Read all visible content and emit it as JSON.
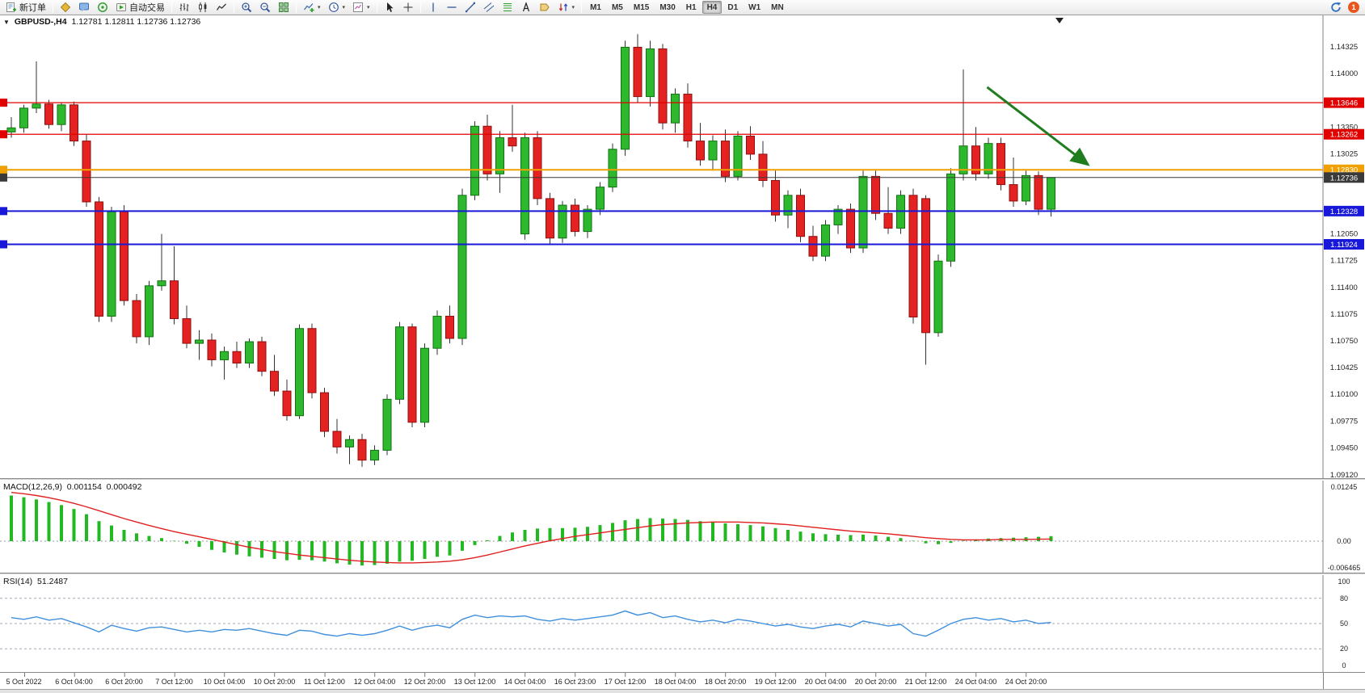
{
  "toolbar": {
    "items": [
      {
        "name": "new-order-button",
        "icon": "new-order-icon",
        "label": "新订单"
      },
      {
        "name": "separator"
      },
      {
        "name": "alerts-button",
        "icon": "megaphone-icon"
      },
      {
        "name": "community-button",
        "icon": "chat-icon"
      },
      {
        "name": "signals-button",
        "icon": "signal-icon"
      },
      {
        "name": "auto-trading-button",
        "icon": "auto-trading-icon",
        "label": "自动交易"
      },
      {
        "name": "separator"
      },
      {
        "name": "bar-chart-button",
        "icon": "bar-chart-icon"
      },
      {
        "name": "candlestick-chart-button",
        "icon": "candlestick-icon"
      },
      {
        "name": "line-chart-button",
        "icon": "line-chart-icon"
      },
      {
        "name": "separator"
      },
      {
        "name": "zoom-in-button",
        "icon": "zoom-in-icon"
      },
      {
        "name": "zoom-out-button",
        "icon": "zoom-out-icon"
      },
      {
        "name": "tile-windows-button",
        "icon": "tile-windows-icon"
      },
      {
        "name": "separator"
      },
      {
        "name": "indicators-button",
        "icon": "add-indicator-icon",
        "dropdown": true
      },
      {
        "name": "periods-button",
        "icon": "clock-icon",
        "dropdown": true
      },
      {
        "name": "templates-button",
        "icon": "template-icon",
        "dropdown": true
      },
      {
        "name": "separator"
      },
      {
        "name": "cursor-button",
        "icon": "cursor-icon"
      },
      {
        "name": "crosshair-button",
        "icon": "crosshair-icon"
      },
      {
        "name": "separator"
      },
      {
        "name": "vertical-line-button",
        "icon": "vline-icon"
      },
      {
        "name": "horizontal-line-button",
        "icon": "hline-icon"
      },
      {
        "name": "trendline-button",
        "icon": "trendline-icon"
      },
      {
        "name": "channel-button",
        "icon": "channel-icon"
      },
      {
        "name": "fibonacci-button",
        "icon": "fibonacci-icon"
      },
      {
        "name": "text-button",
        "icon": "text-icon"
      },
      {
        "name": "label-button",
        "icon": "label-icon"
      },
      {
        "name": "arrows-button",
        "icon": "arrows-icon",
        "dropdown": true
      },
      {
        "name": "separator"
      }
    ],
    "timeframes": [
      "M1",
      "M5",
      "M15",
      "M30",
      "H1",
      "H4",
      "D1",
      "W1",
      "MN"
    ],
    "active_timeframe": "H4",
    "notification_count": "1"
  },
  "chart": {
    "title": "GBPUSD-,H4",
    "ohlc": "1.12781 1.12811 1.12736 1.12736",
    "price_axis": [
      "1.14325",
      "1.14000",
      "1.13350",
      "1.13025",
      "1.12050",
      "1.11725",
      "1.11400",
      "1.11075",
      "1.10750",
      "1.10425",
      "1.10100",
      "1.09775",
      "1.09450",
      "1.09120"
    ]
  },
  "macd": {
    "label": "MACD(12,26,9)",
    "main_value": "0.001154",
    "signal_value": "0.000492",
    "axis": [
      "0.01245",
      "0.00",
      "-0.006465"
    ]
  },
  "rsi": {
    "label": "RSI(14)",
    "value": "51.2487",
    "axis": [
      "100",
      "80",
      "50",
      "20",
      "0"
    ]
  },
  "time_axis": [
    "5 Oct 2022",
    "6 Oct 04:00",
    "6 Oct 20:00",
    "7 Oct 12:00",
    "10 Oct 04:00",
    "10 Oct 20:00",
    "11 Oct 12:00",
    "12 Oct 04:00",
    "12 Oct 20:00",
    "13 Oct 12:00",
    "14 Oct 04:00",
    "16 Oct 23:00",
    "17 Oct 12:00",
    "18 Oct 04:00",
    "18 Oct 20:00",
    "19 Oct 12:00",
    "20 Oct 04:00",
    "20 Oct 20:00",
    "21 Oct 12:00",
    "24 Oct 04:00",
    "24 Oct 20:00"
  ],
  "chart_data": {
    "type": "candlestick",
    "symbol": "GBPUSD-",
    "timeframe": "H4",
    "current_price": 1.12736,
    "ylim": [
      1.0912,
      1.14325
    ],
    "colors": {
      "bull": "#2eb82e",
      "bull_border": "#127212",
      "bear": "#e42222",
      "bear_border": "#8f1010",
      "wick": "#333333",
      "level_red": "#e00000",
      "level_orange": "#f0a000",
      "level_blue": "#1818d8",
      "current_line": "#3a3a3a",
      "macd_hist": "#22b822",
      "macd_signal": "#e02020",
      "rsi_line": "#3f8fdc",
      "arrow": "#1f7d1f"
    },
    "hlines": [
      {
        "price": 1.13646,
        "label": "1.13646",
        "color": "#e00000",
        "width": 1.2
      },
      {
        "price": 1.13262,
        "label": "1.13262",
        "color": "#e00000",
        "width": 1.2
      },
      {
        "price": 1.1283,
        "label": "1.12830",
        "color": "#f0a000",
        "width": 2
      },
      {
        "price": 1.12736,
        "label": "1.12736",
        "color": "#3a3a3a",
        "width": 1
      },
      {
        "price": 1.12328,
        "label": "1.12328",
        "color": "#1818d8",
        "width": 2
      },
      {
        "price": 1.11924,
        "label": "1.11924",
        "color": "#1818d8",
        "width": 2
      }
    ],
    "candles": [
      [
        1.1329,
        1.1347,
        1.1322,
        1.1334
      ],
      [
        1.1334,
        1.1362,
        1.1328,
        1.1358
      ],
      [
        1.1358,
        1.1415,
        1.1352,
        1.1363
      ],
      [
        1.1363,
        1.1368,
        1.1333,
        1.1338
      ],
      [
        1.1338,
        1.1365,
        1.133,
        1.1362
      ],
      [
        1.1362,
        1.1366,
        1.1312,
        1.1318
      ],
      [
        1.1318,
        1.1326,
        1.1238,
        1.1244
      ],
      [
        1.1244,
        1.125,
        1.1098,
        1.1105
      ],
      [
        1.1105,
        1.1238,
        1.1098,
        1.1232
      ],
      [
        1.1232,
        1.124,
        1.1118,
        1.1124
      ],
      [
        1.1124,
        1.1132,
        1.1072,
        1.108
      ],
      [
        1.108,
        1.1148,
        1.107,
        1.1142
      ],
      [
        1.1142,
        1.1205,
        1.1136,
        1.1148
      ],
      [
        1.1148,
        1.119,
        1.1095,
        1.1102
      ],
      [
        1.1102,
        1.1118,
        1.1066,
        1.1072
      ],
      [
        1.1072,
        1.1088,
        1.1052,
        1.1076
      ],
      [
        1.1076,
        1.1084,
        1.1044,
        1.1052
      ],
      [
        1.1052,
        1.1068,
        1.1028,
        1.1062
      ],
      [
        1.1062,
        1.1074,
        1.1042,
        1.1048
      ],
      [
        1.1048,
        1.1078,
        1.1042,
        1.1074
      ],
      [
        1.1074,
        1.108,
        1.1032,
        1.1038
      ],
      [
        1.1038,
        1.1058,
        1.1008,
        1.1014
      ],
      [
        1.1014,
        1.1028,
        1.0978,
        1.0984
      ],
      [
        1.0984,
        1.1095,
        1.098,
        1.109
      ],
      [
        1.109,
        1.1096,
        1.1005,
        1.1012
      ],
      [
        1.1012,
        1.1018,
        1.0958,
        1.0965
      ],
      [
        1.0965,
        1.098,
        1.0938,
        1.0946
      ],
      [
        1.0946,
        1.096,
        1.0925,
        1.0955
      ],
      [
        1.0955,
        1.0962,
        1.0922,
        1.093
      ],
      [
        1.093,
        1.0948,
        1.0924,
        1.0942
      ],
      [
        1.0942,
        1.101,
        1.0936,
        1.1004
      ],
      [
        1.1004,
        1.1098,
        1.0998,
        1.1092
      ],
      [
        1.1092,
        1.1096,
        1.097,
        1.0976
      ],
      [
        1.0976,
        1.1072,
        1.097,
        1.1066
      ],
      [
        1.1066,
        1.1112,
        1.1058,
        1.1105
      ],
      [
        1.1105,
        1.1118,
        1.1072,
        1.1078
      ],
      [
        1.1078,
        1.126,
        1.107,
        1.1252
      ],
      [
        1.1252,
        1.1342,
        1.1246,
        1.1336
      ],
      [
        1.1336,
        1.135,
        1.127,
        1.1278
      ],
      [
        1.1278,
        1.133,
        1.1255,
        1.1322
      ],
      [
        1.1322,
        1.1362,
        1.1305,
        1.1312
      ],
      [
        1.1205,
        1.1328,
        1.1198,
        1.1322
      ],
      [
        1.1322,
        1.133,
        1.124,
        1.1248
      ],
      [
        1.1248,
        1.1255,
        1.1192,
        1.12
      ],
      [
        1.12,
        1.1245,
        1.1194,
        1.124
      ],
      [
        1.124,
        1.1248,
        1.1202,
        1.1208
      ],
      [
        1.1208,
        1.124,
        1.12,
        1.1235
      ],
      [
        1.1235,
        1.1268,
        1.1228,
        1.1262
      ],
      [
        1.1262,
        1.1315,
        1.1256,
        1.1308
      ],
      [
        1.1308,
        1.144,
        1.13,
        1.1432
      ],
      [
        1.1432,
        1.1448,
        1.1365,
        1.1372
      ],
      [
        1.1372,
        1.144,
        1.136,
        1.143
      ],
      [
        1.143,
        1.1436,
        1.1332,
        1.134
      ],
      [
        1.134,
        1.1382,
        1.1328,
        1.1375
      ],
      [
        1.1375,
        1.1388,
        1.131,
        1.1318
      ],
      [
        1.1318,
        1.134,
        1.1288,
        1.1295
      ],
      [
        1.1295,
        1.1325,
        1.1282,
        1.1318
      ],
      [
        1.1318,
        1.1332,
        1.1268,
        1.1275
      ],
      [
        1.1275,
        1.133,
        1.127,
        1.1324
      ],
      [
        1.1324,
        1.1336,
        1.1295,
        1.1302
      ],
      [
        1.1302,
        1.1318,
        1.1262,
        1.127
      ],
      [
        1.127,
        1.1282,
        1.122,
        1.1228
      ],
      [
        1.1228,
        1.1258,
        1.1212,
        1.1252
      ],
      [
        1.1252,
        1.126,
        1.1195,
        1.1202
      ],
      [
        1.1202,
        1.1215,
        1.1172,
        1.1178
      ],
      [
        1.1178,
        1.1222,
        1.1172,
        1.1216
      ],
      [
        1.1216,
        1.124,
        1.1205,
        1.1235
      ],
      [
        1.1235,
        1.1242,
        1.1182,
        1.1188
      ],
      [
        1.1188,
        1.1282,
        1.1182,
        1.1275
      ],
      [
        1.1275,
        1.1282,
        1.1222,
        1.123
      ],
      [
        1.123,
        1.1262,
        1.1205,
        1.1212
      ],
      [
        1.1212,
        1.1258,
        1.1205,
        1.1252
      ],
      [
        1.1252,
        1.126,
        1.1096,
        1.1104
      ],
      [
        1.1248,
        1.1252,
        1.1046,
        1.1085
      ],
      [
        1.1085,
        1.118,
        1.108,
        1.1172
      ],
      [
        1.1172,
        1.1285,
        1.1165,
        1.1278
      ],
      [
        1.1278,
        1.1405,
        1.127,
        1.1312
      ],
      [
        1.1312,
        1.1335,
        1.127,
        1.1278
      ],
      [
        1.1278,
        1.1322,
        1.1272,
        1.1315
      ],
      [
        1.1315,
        1.1322,
        1.1258,
        1.1265
      ],
      [
        1.1265,
        1.1298,
        1.1238,
        1.1245
      ],
      [
        1.1245,
        1.1282,
        1.124,
        1.1276
      ],
      [
        1.1276,
        1.1281,
        1.1228,
        1.1235
      ],
      [
        1.1235,
        1.1262,
        1.1226,
        1.12736
      ]
    ],
    "macd": {
      "scale": 0.001,
      "range": [
        -0.006465,
        0.01245
      ],
      "hist": [
        10.5,
        10.1,
        9.6,
        9.0,
        8.3,
        7.4,
        6.2,
        4.6,
        3.6,
        2.6,
        1.8,
        1.2,
        0.7,
        0.1,
        -0.6,
        -1.3,
        -2.0,
        -2.6,
        -3.1,
        -3.5,
        -3.8,
        -4.1,
        -4.4,
        -4.3,
        -4.4,
        -4.7,
        -5.1,
        -5.4,
        -5.6,
        -5.5,
        -5.2,
        -4.7,
        -4.5,
        -4.1,
        -3.6,
        -3.3,
        -2.2,
        -0.9,
        0.2,
        1.2,
        2.0,
        2.6,
        2.9,
        3.0,
        3.0,
        3.1,
        3.3,
        3.7,
        4.2,
        4.8,
        5.1,
        5.3,
        5.2,
        5.1,
        4.9,
        4.6,
        4.4,
        4.1,
        3.9,
        3.7,
        3.4,
        3.0,
        2.6,
        2.2,
        1.8,
        1.6,
        1.5,
        1.4,
        1.5,
        1.3,
        1.0,
        0.7,
        0.1,
        -0.5,
        -0.7,
        -0.4,
        0.1,
        0.4,
        0.6,
        0.7,
        0.8,
        0.9,
        1.0,
        1.154
      ],
      "signal": [
        11.2,
        10.9,
        10.5,
        10.0,
        9.4,
        8.7,
        7.9,
        7.0,
        6.1,
        5.2,
        4.4,
        3.6,
        2.9,
        2.2,
        1.6,
        1.0,
        0.4,
        -0.2,
        -0.8,
        -1.4,
        -1.9,
        -2.4,
        -2.8,
        -3.2,
        -3.5,
        -3.8,
        -4.1,
        -4.4,
        -4.6,
        -4.8,
        -4.9,
        -5.0,
        -5.0,
        -4.9,
        -4.8,
        -4.6,
        -4.3,
        -3.8,
        -3.2,
        -2.5,
        -1.8,
        -1.1,
        -0.5,
        0.1,
        0.6,
        1.1,
        1.5,
        1.9,
        2.3,
        2.7,
        3.1,
        3.5,
        3.8,
        4.0,
        4.2,
        4.3,
        4.4,
        4.4,
        4.4,
        4.3,
        4.2,
        4.0,
        3.8,
        3.5,
        3.2,
        2.9,
        2.6,
        2.3,
        2.1,
        1.9,
        1.7,
        1.4,
        1.1,
        0.8,
        0.6,
        0.4,
        0.3,
        0.3,
        0.3,
        0.4,
        0.4,
        0.4,
        0.45,
        0.492
      ]
    },
    "rsi": {
      "range": [
        0,
        100
      ],
      "levels": [
        80,
        50,
        20
      ],
      "values": [
        57,
        55,
        58,
        54,
        56,
        51,
        46,
        40,
        48,
        44,
        41,
        45,
        46,
        43,
        40,
        42,
        40,
        43,
        42,
        44,
        41,
        38,
        36,
        42,
        41,
        37,
        35,
        38,
        36,
        38,
        42,
        47,
        42,
        46,
        48,
        45,
        55,
        60,
        57,
        59,
        58,
        59,
        55,
        53,
        56,
        54,
        56,
        58,
        60,
        65,
        60,
        63,
        57,
        59,
        55,
        52,
        54,
        51,
        55,
        53,
        50,
        47,
        49,
        46,
        44,
        47,
        49,
        46,
        53,
        50,
        47,
        49,
        38,
        35,
        42,
        50,
        55,
        57,
        54,
        56,
        52,
        54,
        50,
        51.2487
      ]
    },
    "arrow": {
      "from_bar": 77.9,
      "from_price": 1.13834,
      "to_bar": 85.8,
      "to_price": 1.12911
    }
  }
}
